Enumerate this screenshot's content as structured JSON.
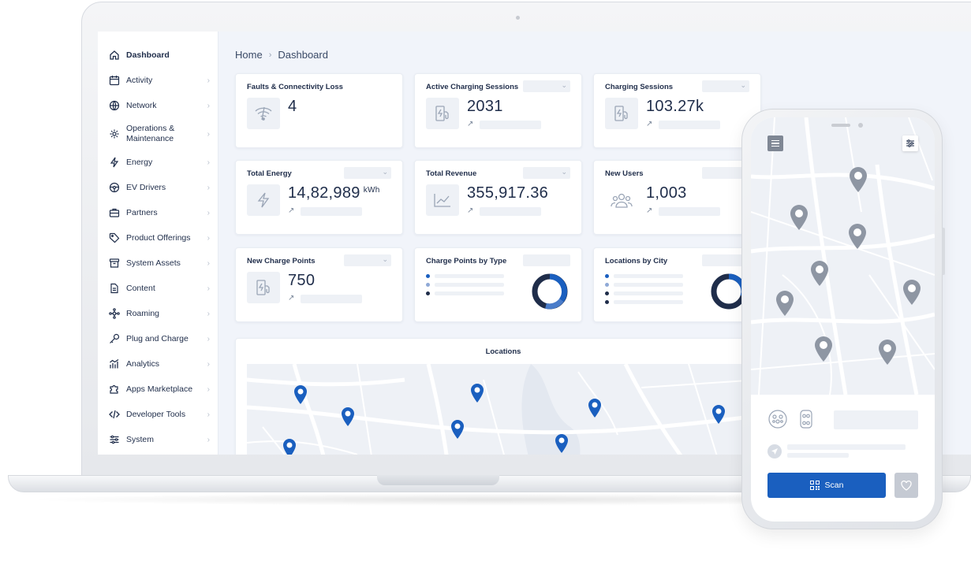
{
  "breadcrumb": {
    "home": "Home",
    "current": "Dashboard"
  },
  "sidebar": {
    "items": [
      {
        "label": "Dashboard",
        "icon": "home-icon"
      },
      {
        "label": "Activity",
        "icon": "calendar-icon"
      },
      {
        "label": "Network",
        "icon": "globe-icon"
      },
      {
        "label": "Operations & Maintenance",
        "icon": "gear-icon"
      },
      {
        "label": "Energy",
        "icon": "lightning-icon"
      },
      {
        "label": "EV Drivers",
        "icon": "steering-wheel-icon"
      },
      {
        "label": "Partners",
        "icon": "briefcase-icon"
      },
      {
        "label": "Product Offerings",
        "icon": "tag-icon"
      },
      {
        "label": "System Assets",
        "icon": "archive-box-icon"
      },
      {
        "label": "Content",
        "icon": "document-icon"
      },
      {
        "label": "Roaming",
        "icon": "network-nodes-icon"
      },
      {
        "label": "Plug and Charge",
        "icon": "key-icon"
      },
      {
        "label": "Analytics",
        "icon": "bar-chart-icon"
      },
      {
        "label": "Apps Marketplace",
        "icon": "puzzle-icon"
      },
      {
        "label": "Developer Tools",
        "icon": "code-icon"
      },
      {
        "label": "System",
        "icon": "sliders-icon"
      }
    ]
  },
  "cards": {
    "faults": {
      "title": "Faults & Connectivity Loss",
      "value": "4"
    },
    "active_sessions": {
      "title": "Active Charging Sessions",
      "value": "2031"
    },
    "sessions": {
      "title": "Charging Sessions",
      "value": "103.27k"
    },
    "energy": {
      "title": "Total Energy",
      "value": "14,82,989",
      "unit": "kWh"
    },
    "revenue": {
      "title": "Total Revenue",
      "value": "355,917.36"
    },
    "users": {
      "title": "New Users",
      "value": "1,003"
    },
    "charge_points": {
      "title": "New Charge Points",
      "value": "750"
    },
    "cp_by_type": {
      "title": "Charge Points by Type"
    },
    "loc_by_city": {
      "title": "Locations by City"
    },
    "locations": {
      "title": "Locations"
    }
  },
  "phone": {
    "scan_label": "Scan"
  },
  "colors": {
    "accent": "#1a5fbf",
    "navy": "#1f2d4a",
    "pin_gray": "#8e96a3"
  }
}
